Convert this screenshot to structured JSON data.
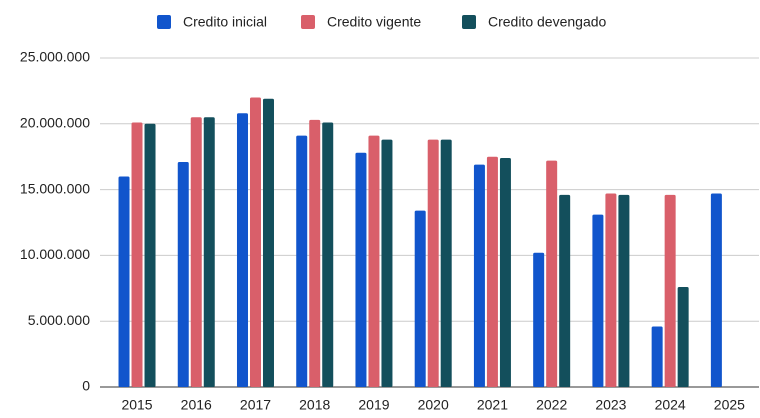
{
  "chart_data": {
    "type": "bar",
    "categories": [
      "2015",
      "2016",
      "2017",
      "2018",
      "2019",
      "2020",
      "2021",
      "2022",
      "2023",
      "2024",
      "2025"
    ],
    "series": [
      {
        "name": "Credito inicial",
        "color": "#1155cc",
        "values": [
          16000000.0,
          17100000.0,
          20800000.0,
          19100000.0,
          17800000.0,
          13400000.0,
          16900000.0,
          10200000.0,
          13100000.0,
          4600000.0,
          14700000.0
        ]
      },
      {
        "name": "Credito vigente",
        "color": "#d95f6a",
        "values": [
          20100000.0,
          20500000.0,
          22000000.0,
          20300000.0,
          19100000.0,
          18800000.0,
          17500000.0,
          17200000.0,
          14700000.0,
          14600000.0,
          null
        ]
      },
      {
        "name": "Credito devengado",
        "color": "#134f5c",
        "values": [
          20000000.0,
          20500000.0,
          21900000.0,
          20100000.0,
          18800000.0,
          18800000.0,
          17400000.0,
          14600000.0,
          14600000.0,
          7600000.0,
          null
        ]
      }
    ],
    "ylim": [
      0,
      25000000
    ],
    "yticks": [
      0,
      {
        "value": 5000000,
        "label": "5.000.000"
      },
      {
        "value": 10000000,
        "label": "10.000.000"
      },
      {
        "value": 15000000,
        "label": "15.000.000"
      },
      {
        "value": 20000000,
        "label": "20.000.000"
      },
      {
        "value": 25000000,
        "label": "25.000.000"
      }
    ],
    "grid": true,
    "legend": "top"
  }
}
